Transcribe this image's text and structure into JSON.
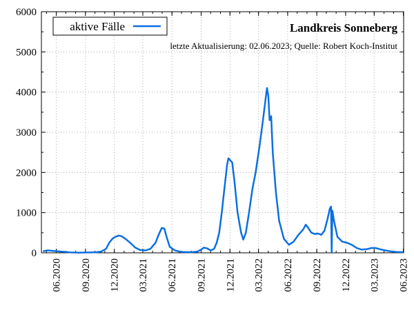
{
  "chart_data": {
    "type": "line",
    "title": "Landkreis Sonneberg",
    "subtitle": "letzte Aktualisierung: 02.06.2023; Quelle: Robert Koch-Institut",
    "xlabel": "",
    "ylabel": "",
    "ylim": [
      0,
      6000
    ],
    "yticks": [
      0,
      1000,
      2000,
      3000,
      4000,
      5000,
      6000
    ],
    "xlim": [
      "2020-04-15",
      "2023-06-02"
    ],
    "xticks": [
      {
        "date": "2020-06-01",
        "label": "06.2020"
      },
      {
        "date": "2020-09-01",
        "label": "09.2020"
      },
      {
        "date": "2020-12-01",
        "label": "12.2020"
      },
      {
        "date": "2021-03-01",
        "label": "03.2021"
      },
      {
        "date": "2021-06-01",
        "label": "06.2021"
      },
      {
        "date": "2021-09-01",
        "label": "09.2021"
      },
      {
        "date": "2021-12-01",
        "label": "12.2021"
      },
      {
        "date": "2022-03-01",
        "label": "03.2022"
      },
      {
        "date": "2022-06-01",
        "label": "06.2022"
      },
      {
        "date": "2022-09-01",
        "label": "09.2022"
      },
      {
        "date": "2022-12-01",
        "label": "12.2022"
      },
      {
        "date": "2023-03-01",
        "label": "03.2023"
      },
      {
        "date": "2023-06-01",
        "label": "06.2023"
      }
    ],
    "grid": true,
    "legend": {
      "position": "top-left",
      "entries": [
        "aktive Fälle"
      ]
    },
    "colors": {
      "series": "#0a6fe0",
      "grid": "#aaaaaa",
      "axis": "#000000"
    },
    "series": [
      {
        "name": "aktive Fälle",
        "points": [
          [
            "2020-04-20",
            40
          ],
          [
            "2020-05-05",
            60
          ],
          [
            "2020-05-20",
            50
          ],
          [
            "2020-06-05",
            40
          ],
          [
            "2020-06-25",
            25
          ],
          [
            "2020-07-15",
            10
          ],
          [
            "2020-08-10",
            5
          ],
          [
            "2020-09-10",
            8
          ],
          [
            "2020-10-05",
            15
          ],
          [
            "2020-10-20",
            30
          ],
          [
            "2020-11-05",
            100
          ],
          [
            "2020-11-15",
            250
          ],
          [
            "2020-11-25",
            350
          ],
          [
            "2020-12-05",
            400
          ],
          [
            "2020-12-15",
            430
          ],
          [
            "2020-12-25",
            410
          ],
          [
            "2021-01-05",
            350
          ],
          [
            "2021-01-20",
            250
          ],
          [
            "2021-02-05",
            130
          ],
          [
            "2021-02-20",
            70
          ],
          [
            "2021-03-10",
            60
          ],
          [
            "2021-03-25",
            100
          ],
          [
            "2021-04-10",
            250
          ],
          [
            "2021-04-20",
            450
          ],
          [
            "2021-04-30",
            620
          ],
          [
            "2021-05-08",
            600
          ],
          [
            "2021-05-15",
            400
          ],
          [
            "2021-05-25",
            150
          ],
          [
            "2021-06-10",
            60
          ],
          [
            "2021-07-01",
            20
          ],
          [
            "2021-08-01",
            15
          ],
          [
            "2021-08-20",
            30
          ],
          [
            "2021-09-01",
            80
          ],
          [
            "2021-09-10",
            130
          ],
          [
            "2021-09-20",
            110
          ],
          [
            "2021-10-01",
            60
          ],
          [
            "2021-10-12",
            100
          ],
          [
            "2021-10-20",
            250
          ],
          [
            "2021-10-28",
            500
          ],
          [
            "2021-11-05",
            1000
          ],
          [
            "2021-11-15",
            1700
          ],
          [
            "2021-11-22",
            2200
          ],
          [
            "2021-11-26",
            2350
          ],
          [
            "2021-12-02",
            2300
          ],
          [
            "2021-12-08",
            2250
          ],
          [
            "2021-12-15",
            1800
          ],
          [
            "2021-12-25",
            1000
          ],
          [
            "2022-01-05",
            500
          ],
          [
            "2022-01-12",
            330
          ],
          [
            "2022-01-20",
            500
          ],
          [
            "2022-01-30",
            1000
          ],
          [
            "2022-02-10",
            1600
          ],
          [
            "2022-02-20",
            2000
          ],
          [
            "2022-03-05",
            2700
          ],
          [
            "2022-03-15",
            3300
          ],
          [
            "2022-03-23",
            3800
          ],
          [
            "2022-03-28",
            4100
          ],
          [
            "2022-04-01",
            3900
          ],
          [
            "2022-04-05",
            3300
          ],
          [
            "2022-04-10",
            3400
          ],
          [
            "2022-04-15",
            2500
          ],
          [
            "2022-04-25",
            1500
          ],
          [
            "2022-05-05",
            800
          ],
          [
            "2022-05-20",
            350
          ],
          [
            "2022-06-05",
            200
          ],
          [
            "2022-06-20",
            280
          ],
          [
            "2022-07-05",
            450
          ],
          [
            "2022-07-20",
            580
          ],
          [
            "2022-07-28",
            700
          ],
          [
            "2022-08-05",
            620
          ],
          [
            "2022-08-15",
            500
          ],
          [
            "2022-08-25",
            470
          ],
          [
            "2022-09-05",
            480
          ],
          [
            "2022-09-15",
            450
          ],
          [
            "2022-09-25",
            550
          ],
          [
            "2022-10-05",
            850
          ],
          [
            "2022-10-12",
            1100
          ],
          [
            "2022-10-16",
            1150
          ],
          [
            "2022-10-18",
            0
          ],
          [
            "2022-10-20",
            1050
          ],
          [
            "2022-10-25",
            800
          ],
          [
            "2022-11-05",
            400
          ],
          [
            "2022-11-20",
            280
          ],
          [
            "2022-12-05",
            250
          ],
          [
            "2022-12-20",
            200
          ],
          [
            "2023-01-05",
            120
          ],
          [
            "2023-01-20",
            80
          ],
          [
            "2023-02-05",
            90
          ],
          [
            "2023-02-20",
            120
          ],
          [
            "2023-03-05",
            120
          ],
          [
            "2023-03-20",
            90
          ],
          [
            "2023-04-05",
            60
          ],
          [
            "2023-04-20",
            40
          ],
          [
            "2023-05-10",
            20
          ],
          [
            "2023-06-01",
            15
          ]
        ]
      }
    ]
  }
}
